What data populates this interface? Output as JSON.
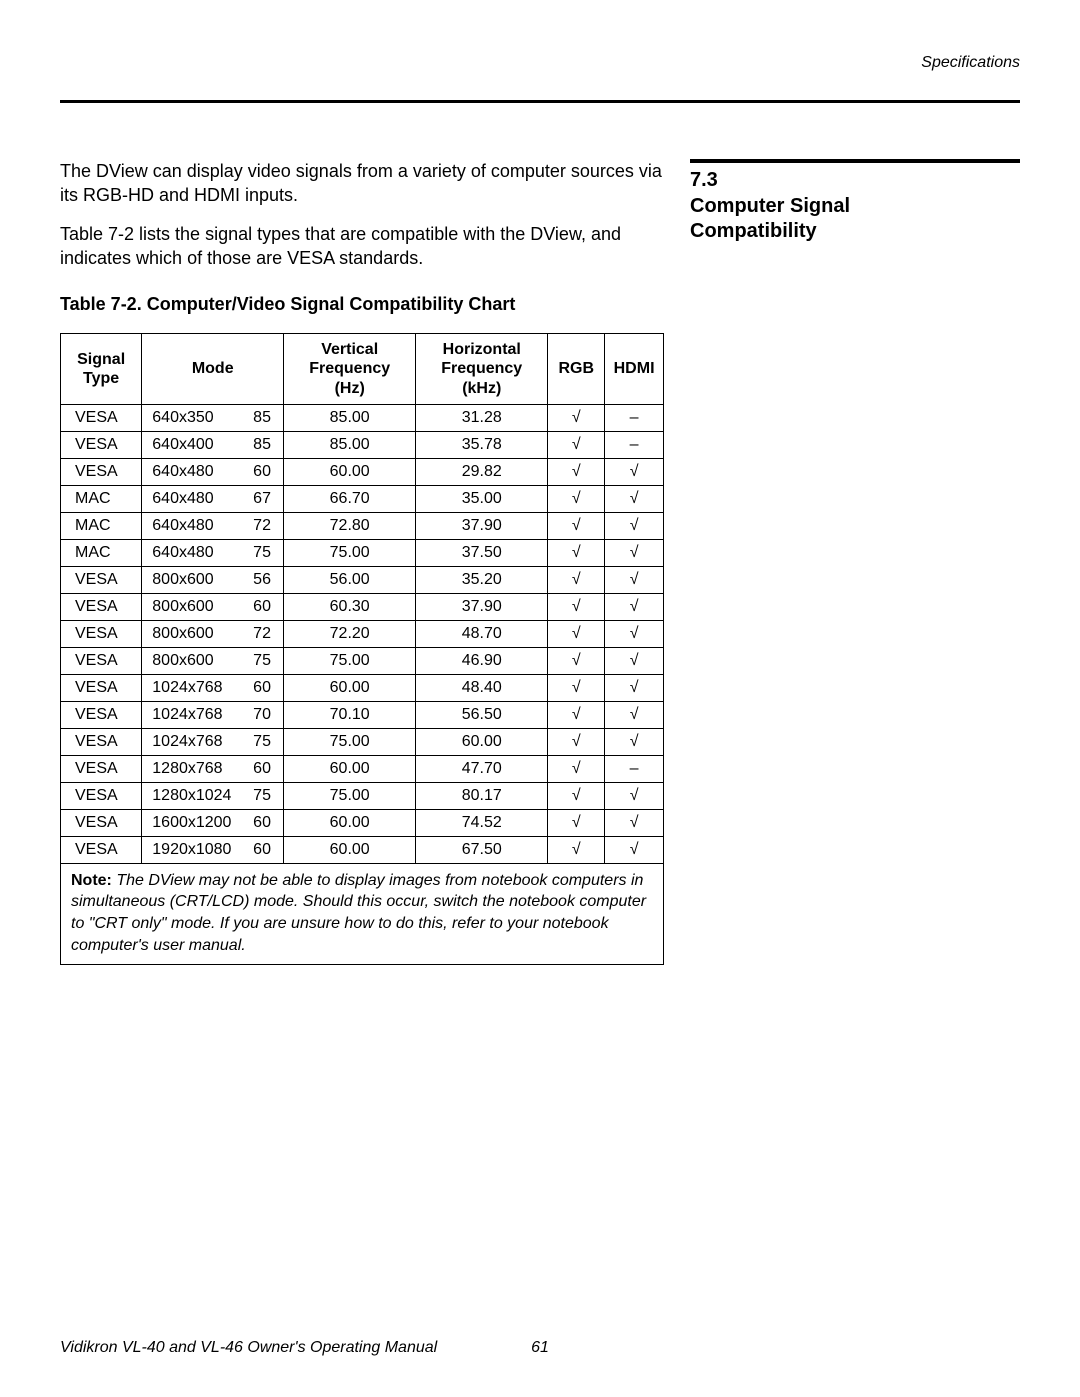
{
  "running_head": "Specifications",
  "section": {
    "num": "7.3",
    "title_line1": "Computer Signal",
    "title_line2": "Compatibility"
  },
  "paragraphs": {
    "p1": "The DView can display video signals from a variety of computer sources via its RGB-HD and HDMI inputs.",
    "p2": "Table 7-2 lists the signal types that are compatible with the DView, and indicates which of those are VESA standards."
  },
  "table": {
    "caption": "Table 7-2. Computer/Video Signal Compatibility Chart",
    "headers": {
      "signal": "Signal Type",
      "mode": "Mode",
      "vfreq": "Vertical Frequency (Hz)",
      "hfreq": "Horizontal Frequency (kHz)",
      "rgb": "RGB",
      "hdmi": "HDMI"
    },
    "check_glyph": "√",
    "dash_glyph": "–",
    "rows": [
      {
        "signal": "VESA",
        "res": "640x350",
        "rate": "85",
        "vfreq": "85.00",
        "hfreq": "31.28",
        "rgb": "√",
        "hdmi": "–"
      },
      {
        "signal": "VESA",
        "res": "640x400",
        "rate": "85",
        "vfreq": "85.00",
        "hfreq": "35.78",
        "rgb": "√",
        "hdmi": "–"
      },
      {
        "signal": "VESA",
        "res": "640x480",
        "rate": "60",
        "vfreq": "60.00",
        "hfreq": "29.82",
        "rgb": "√",
        "hdmi": "√"
      },
      {
        "signal": "MAC",
        "res": "640x480",
        "rate": "67",
        "vfreq": "66.70",
        "hfreq": "35.00",
        "rgb": "√",
        "hdmi": "√"
      },
      {
        "signal": "MAC",
        "res": "640x480",
        "rate": "72",
        "vfreq": "72.80",
        "hfreq": "37.90",
        "rgb": "√",
        "hdmi": "√"
      },
      {
        "signal": "MAC",
        "res": "640x480",
        "rate": "75",
        "vfreq": "75.00",
        "hfreq": "37.50",
        "rgb": "√",
        "hdmi": "√"
      },
      {
        "signal": "VESA",
        "res": "800x600",
        "rate": "56",
        "vfreq": "56.00",
        "hfreq": "35.20",
        "rgb": "√",
        "hdmi": "√"
      },
      {
        "signal": "VESA",
        "res": "800x600",
        "rate": "60",
        "vfreq": "60.30",
        "hfreq": "37.90",
        "rgb": "√",
        "hdmi": "√"
      },
      {
        "signal": "VESA",
        "res": "800x600",
        "rate": "72",
        "vfreq": "72.20",
        "hfreq": "48.70",
        "rgb": "√",
        "hdmi": "√"
      },
      {
        "signal": "VESA",
        "res": "800x600",
        "rate": "75",
        "vfreq": "75.00",
        "hfreq": "46.90",
        "rgb": "√",
        "hdmi": "√"
      },
      {
        "signal": "VESA",
        "res": "1024x768",
        "rate": "60",
        "vfreq": "60.00",
        "hfreq": "48.40",
        "rgb": "√",
        "hdmi": "√"
      },
      {
        "signal": "VESA",
        "res": "1024x768",
        "rate": "70",
        "vfreq": "70.10",
        "hfreq": "56.50",
        "rgb": "√",
        "hdmi": "√"
      },
      {
        "signal": "VESA",
        "res": "1024x768",
        "rate": "75",
        "vfreq": "75.00",
        "hfreq": "60.00",
        "rgb": "√",
        "hdmi": "√"
      },
      {
        "signal": "VESA",
        "res": "1280x768",
        "rate": "60",
        "vfreq": "60.00",
        "hfreq": "47.70",
        "rgb": "√",
        "hdmi": "–"
      },
      {
        "signal": "VESA",
        "res": "1280x1024",
        "rate": "75",
        "vfreq": "75.00",
        "hfreq": "80.17",
        "rgb": "√",
        "hdmi": "√"
      },
      {
        "signal": "VESA",
        "res": "1600x1200",
        "rate": "60",
        "vfreq": "60.00",
        "hfreq": "74.52",
        "rgb": "√",
        "hdmi": "√"
      },
      {
        "signal": "VESA",
        "res": "1920x1080",
        "rate": "60",
        "vfreq": "60.00",
        "hfreq": "67.50",
        "rgb": "√",
        "hdmi": "√"
      }
    ]
  },
  "note": {
    "label": "Note:",
    "text": " The DView may not be able to display images from notebook computers in simultaneous (CRT/LCD) mode. Should this occur, switch the notebook computer to \"CRT only\" mode. If you are unsure how to do this, refer to your notebook computer's user manual."
  },
  "footer": {
    "manual": "Vidikron VL-40 and VL-46 Owner's Operating Manual",
    "page": "61"
  },
  "colors": {
    "text": "#000000",
    "background": "#ffffff",
    "rule": "#000000",
    "border": "#000000"
  }
}
